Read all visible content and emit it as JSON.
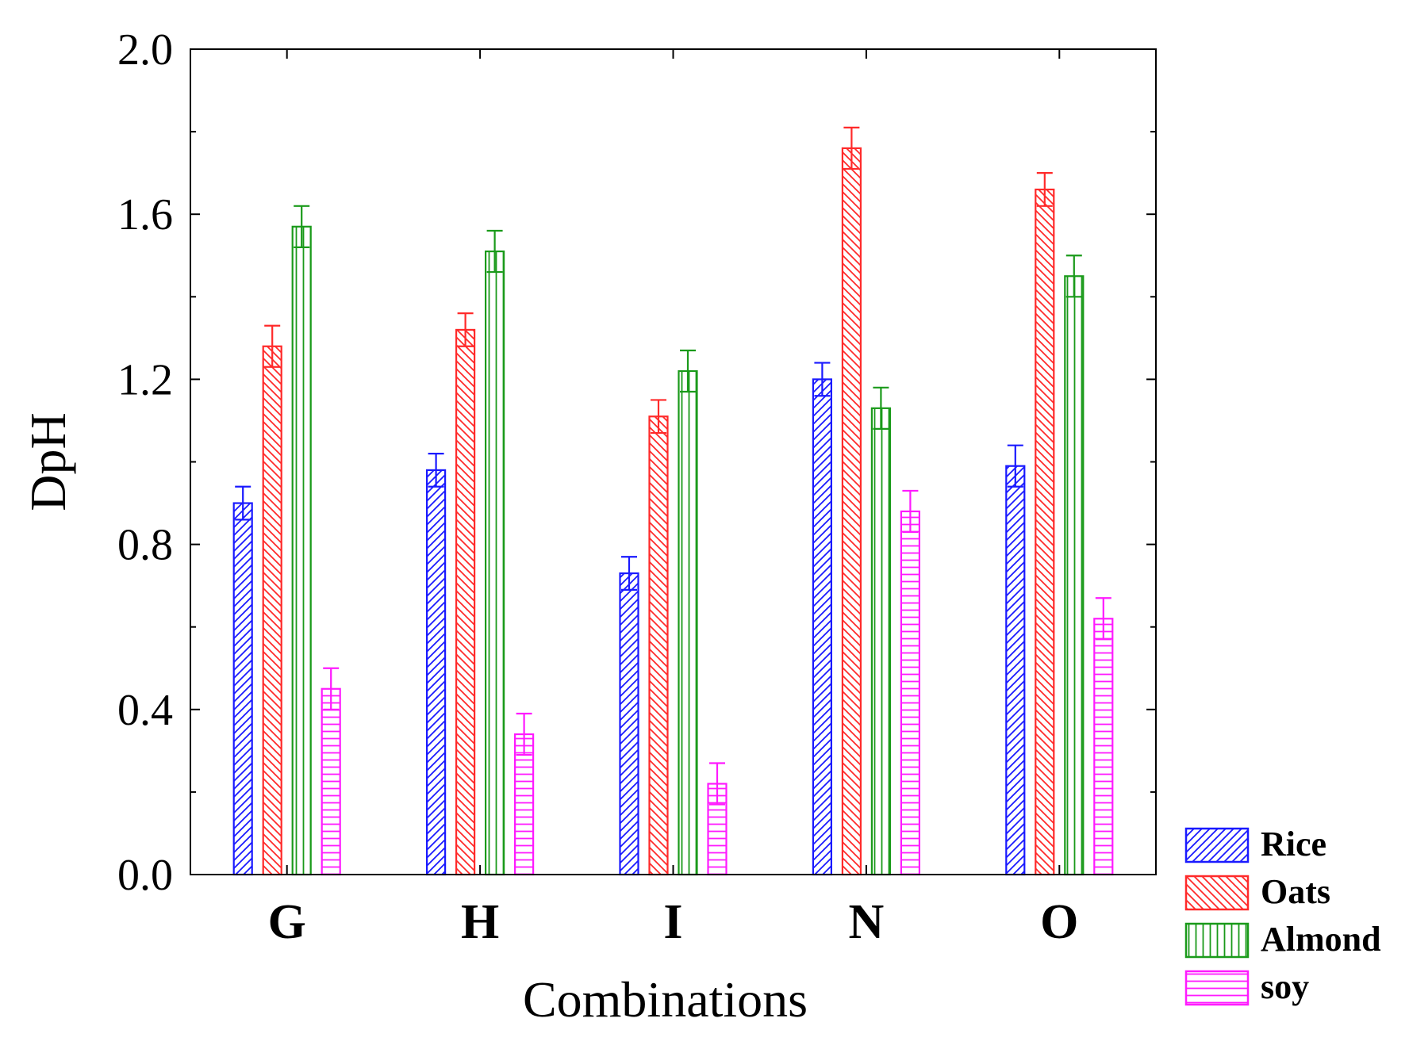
{
  "chart_data": {
    "type": "bar",
    "title": "",
    "xlabel": "Combinations",
    "ylabel": "DpH",
    "ylim": [
      0,
      2.0
    ],
    "yticks": [
      0.0,
      0.4,
      0.8,
      1.2,
      1.6,
      2.0
    ],
    "ytick_labels": [
      "0.0",
      "0.4",
      "0.8",
      "1.2",
      "1.6",
      "2.0"
    ],
    "categories": [
      "G",
      "H",
      "I",
      "N",
      "O"
    ],
    "legend_position": "bottom-right outside",
    "series": [
      {
        "name": "Rice",
        "color": "#1a1aff",
        "pattern": "diag-up",
        "values": [
          0.9,
          0.98,
          0.73,
          1.2,
          0.99
        ],
        "errors": [
          0.04,
          0.04,
          0.04,
          0.04,
          0.05
        ]
      },
      {
        "name": "Oats",
        "color": "#ff2a2a",
        "pattern": "diag-down",
        "values": [
          1.28,
          1.32,
          1.11,
          1.76,
          1.66
        ],
        "errors": [
          0.05,
          0.04,
          0.04,
          0.05,
          0.04
        ]
      },
      {
        "name": "Almond",
        "color": "#1a9a1a",
        "pattern": "vertical",
        "values": [
          1.57,
          1.51,
          1.22,
          1.13,
          1.45
        ],
        "errors": [
          0.05,
          0.05,
          0.05,
          0.05,
          0.05
        ]
      },
      {
        "name": "soy",
        "color": "#ff1aff",
        "pattern": "horizontal",
        "values": [
          0.45,
          0.34,
          0.22,
          0.88,
          0.62
        ],
        "errors": [
          0.05,
          0.05,
          0.05,
          0.05,
          0.05
        ]
      }
    ]
  }
}
